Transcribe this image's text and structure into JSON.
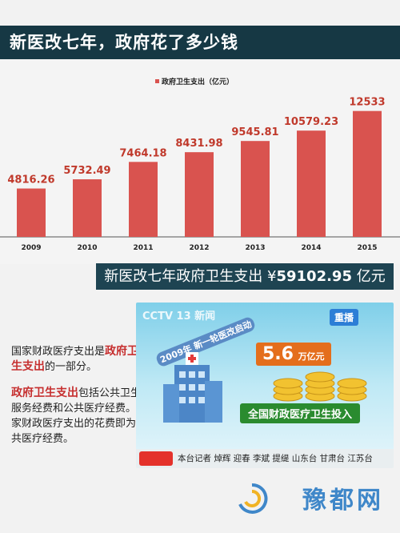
{
  "header": {
    "title": "新医改七年，政府花了多少钱"
  },
  "chart_data": {
    "type": "bar",
    "legend": "政府卫生支出（亿元）",
    "categories": [
      "2009",
      "2010",
      "2011",
      "2012",
      "2013",
      "2014",
      "2015"
    ],
    "value_labels": [
      "4816.26",
      "5732.49",
      "7464.18",
      "8431.98",
      "9545.81",
      "10579.23",
      "12533"
    ],
    "values": [
      4816.26,
      5732.49,
      7464.18,
      8431.98,
      9545.81,
      10579.23,
      12533
    ],
    "ylim": [
      0,
      14500
    ],
    "bar_color": "#d9534f",
    "label_color": "#c0392b"
  },
  "total": {
    "prefix": "新医改七年政府卫生支出 ¥",
    "amount": "59102.95",
    "unit": " 亿元"
  },
  "side": {
    "p1_a": "国家财政医疗支出是",
    "p1_hl": "政府卫生支出",
    "p1_b": "的一部分。",
    "p2_hl": "政府卫生支出",
    "p2_b": "包括公共卫生服务经费和公共医疗经费。国家财政医疗支出的花费即为公共医疗经费。"
  },
  "tv": {
    "channel": "CCTV 13 新闻",
    "replay": "重播",
    "arc": "2009年 新一轮医改启动",
    "amount": "5.6",
    "amount_unit": "万亿元",
    "invest": "全国财政医疗卫生投入",
    "ticker": "本台记者 焯辉 迎春 李斌 提缇 山东台 甘肃台 江苏台"
  },
  "watermark": "豫都网"
}
